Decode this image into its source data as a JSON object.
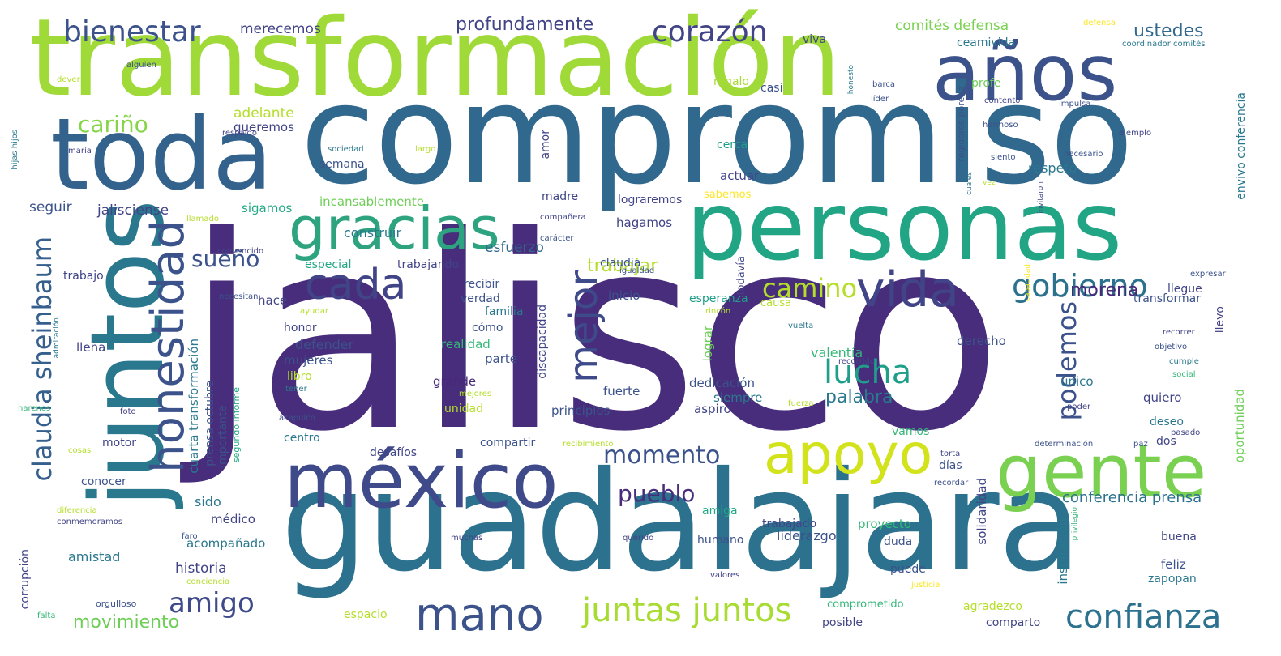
{
  "palette": {
    "purple": "#472d7b",
    "violet": "#482878",
    "indigo": "#3b528b",
    "blue": "#31688e",
    "teal": "#26828e",
    "sea": "#1f9e89",
    "green": "#35b779",
    "lime": "#6ece58",
    "yellowgreen": "#b5de2b",
    "yellow": "#fde725"
  },
  "words": {
    "jalisco": "jalisco",
    "compromiso": "compromiso",
    "transformacion": "transformación",
    "guadalajara": "guadalajara",
    "personas": "personas",
    "toda": "toda",
    "juntos": "juntos",
    "anos": "años",
    "mexico": "méxico",
    "gracias": "gracias",
    "gente": "gente",
    "apoyo": "apoyo",
    "honestidad": "honestidad",
    "vida": "vida",
    "cada": "cada",
    "mano": "mano",
    "mejor": "mejor",
    "claudia_sheinbaum": "claudia sheinbaum",
    "bienestar": "bienestar",
    "corazon": "corazón",
    "gobierno": "gobierno",
    "juntas_juntos": "juntas juntos",
    "confianza": "confianza",
    "momento": "momento",
    "lucha": "lucha",
    "amigo": "amigo",
    "podemos": "podemos",
    "camino": "camino",
    "pueblo": "pueblo",
    "carino": "cariño",
    "sueno": "sueño",
    "palabra": "palabra",
    "profundamente": "profundamente",
    "movimiento": "movimiento",
    "ustedes": "ustedes",
    "morena": "morena",
    "trabajar": "trabajar",
    "conferencia_prensa": "conferencia prensa",
    "comites_defensa": "comités defensa",
    "merecemos": "merecemos",
    "ceamivida": "ceamivida",
    "viva": "viva",
    "casi": "casi",
    "profe": "profe",
    "regalo": "regalo",
    "adelante": "adelante",
    "queremos": "queremos",
    "cerca": "cerca",
    "semana": "semana",
    "actuar": "actuar",
    "respeto": "respeto",
    "incansablemente": "incansablemente",
    "sigamos": "sigamos",
    "jalisciense": "jalisciense",
    "seguir": "seguir",
    "madre": "madre",
    "lograremos": "lograremos",
    "sabemos": "sabemos",
    "hagamos": "hagamos",
    "construir": "construir",
    "esfuerzo": "esfuerzo",
    "especial": "especial",
    "trabajando": "trabajando",
    "claudia": "claudia",
    "trabajo": "trabajo",
    "recibir": "recibir",
    "inicio": "inicio",
    "esperanza": "esperanza",
    "hace": "hace",
    "verdad": "verdad",
    "familia": "familia",
    "causa": "causa",
    "llegue": "llegue",
    "transformar": "transformar",
    "llevo": "llevo",
    "honor": "honor",
    "como": "cómo",
    "defender": "defender",
    "llena": "llena",
    "realidad": "realidad",
    "parte": "parte",
    "valentia": "valentía",
    "derecho": "derecho",
    "mujeres": "mujeres",
    "libro": "libro",
    "grande": "grande",
    "dedicacion": "dedicación",
    "unico": "único",
    "fuerte": "fuerte",
    "siempre": "siempre",
    "quiero": "quiero",
    "unidad": "unidad",
    "principios": "principios",
    "aspiro": "aspiro",
    "deseo": "deseo",
    "vamos": "vamos",
    "motor": "motor",
    "centro": "centro",
    "desafios": "desafíos",
    "compartir": "compartir",
    "dos": "dos",
    "dias": "días",
    "conocer": "conocer",
    "sido": "sido",
    "medico": "médico",
    "amiga": "amiga",
    "trabajado": "trabajado",
    "proyecto": "proyecto",
    "historia": "historia",
    "acompanado": "acompañado",
    "humano": "humano",
    "liderazgo": "liderazgo",
    "duda": "duda",
    "buena": "buena",
    "amistad": "amistad",
    "feliz": "feliz",
    "puede": "puede",
    "zapopan": "zapopan",
    "espacio": "espacio",
    "comprometido": "comprometido",
    "agradezco": "agradezco",
    "posible": "posible",
    "comparto": "comparto",
    "orgulloso": "orgulloso",
    "solidaridad": "solidaridad",
    "inspiracion": "inspiración",
    "oportunidad": "oportunidad",
    "corrupcion": "corrupción",
    "cuarta_transformacion": "cuarta transformación",
    "prensa_octubre": "prensa octubre",
    "importante": "importante",
    "segundo_informe": "segundo informe",
    "discapacidad": "discapacidad",
    "todavia": "todavía",
    "lograr": "lograr",
    "envivo_conferencia": "envivo conferencia",
    "coordinador_comites": "coordinador comités",
    "defensa": "defensa",
    "alguien": "alguien",
    "dever": "dever",
    "barca": "barca",
    "lider": "líder",
    "honesto": "honesto",
    "contento": "contento",
    "impulsa": "impulsa",
    "respaldo": "respaldo",
    "hermoso": "hermoso",
    "hijas_hijos": "hijas hijos",
    "maria": "maría",
    "sociedad": "sociedad",
    "largo": "largo",
    "siento": "siento",
    "regidores_porena": "regidores porena",
    "ejemplo": "ejemplo",
    "necesario": "necesario",
    "cuales": "cuales",
    "vez": "vez",
    "invitaron": "invitaron",
    "amor": "amor",
    "llamado": "llamado",
    "companera": "compañera",
    "caracter": "carácter",
    "convencido": "convencido",
    "igualdad": "igualdad",
    "necesitan": "necesitan",
    "ayudar": "ayudar",
    "rincon": "rincón",
    "capacidad": "capacidad",
    "expresar": "expresar",
    "admiracion": "admiración",
    "vuelta": "vuelta",
    "recorrer": "recorrer",
    "objetivo": "objetivo",
    "cumple": "cumple",
    "social": "social",
    "recorrido": "recorrido",
    "tener": "tener",
    "mejores": "mejores",
    "fuerza": "fuerza",
    "poder": "poder",
    "harenos": "harenos",
    "foto": "foto",
    "acapulco": "acapulco",
    "pasado": "pasado",
    "paz": "paz",
    "determinacion": "determinación",
    "recibimiento": "recibimiento",
    "torta": "torta",
    "cosas": "cosas",
    "recordar": "recordar",
    "diferencia": "diferencia",
    "conmemoramos": "conmemoramos",
    "faro": "faro",
    "muchas": "muchas",
    "querido": "querido",
    "privilegio": "privilegio",
    "conciencia": "conciencia",
    "valores": "valores",
    "justicia": "justicia",
    "falta": "falta"
  }
}
